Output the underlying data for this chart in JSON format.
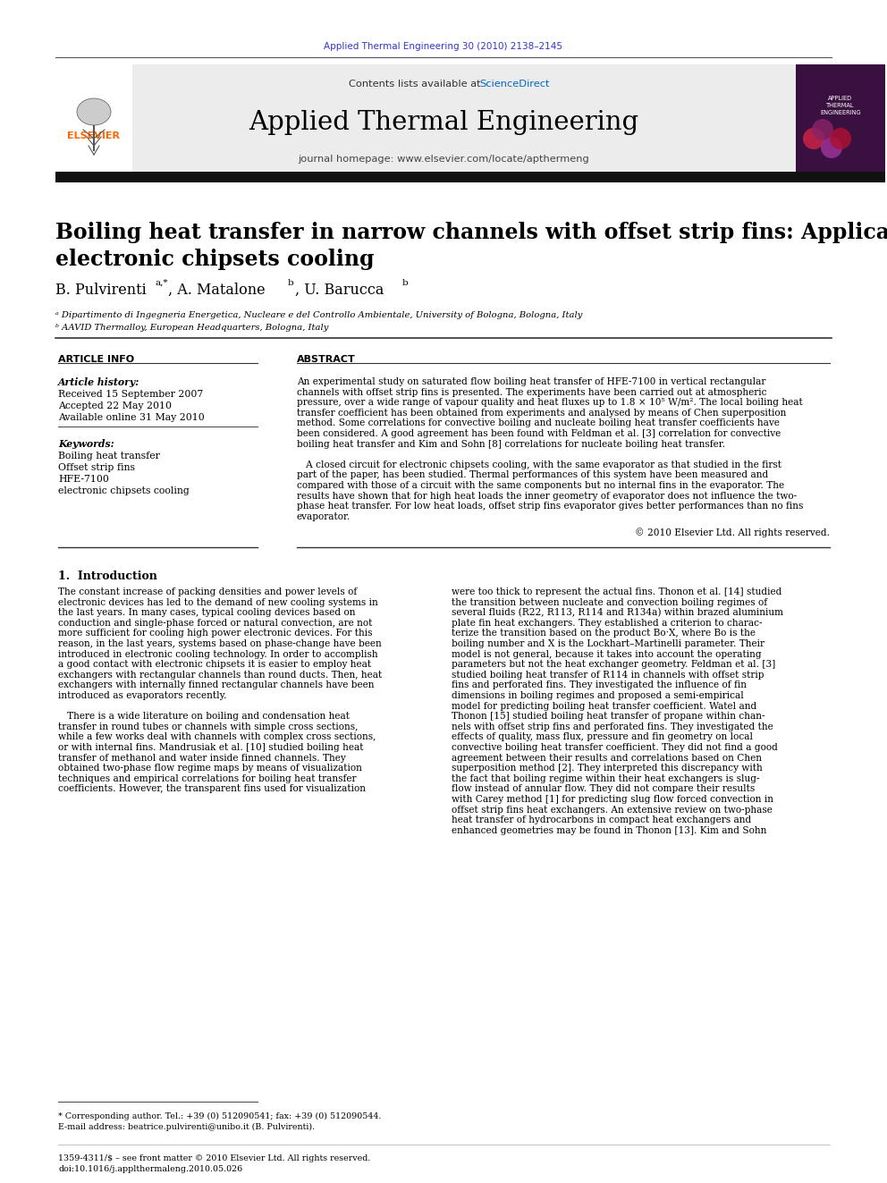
{
  "journal_ref": "Applied Thermal Engineering 30 (2010) 2138–2145",
  "journal_name": "Applied Thermal Engineering",
  "journal_homepage": "journal homepage: www.elsevier.com/locate/apthermeng",
  "contents_text": "Contents lists available at ",
  "sciencedirect_text": "ScienceDirect",
  "paper_title": "Boiling heat transfer in narrow channels with offset strip fins: Application to\nelectronic chipsets cooling",
  "affil1": "ᵃ Dipartimento di Ingegneria Energetica, Nucleare e del Controllo Ambientale, University of Bologna, Bologna, Italy",
  "affil2": "ᵇ AAVID Thermalloy, European Headquarters, Bologna, Italy",
  "section_article_info": "ARTICLE INFO",
  "section_abstract": "ABSTRACT",
  "article_history_label": "Article history:",
  "received": "Received 15 September 2007",
  "accepted": "Accepted 22 May 2010",
  "available": "Available online 31 May 2010",
  "keywords_label": "Keywords:",
  "keywords": [
    "Boiling heat transfer",
    "Offset strip fins",
    "HFE-7100",
    "electronic chipsets cooling"
  ],
  "copyright": "© 2010 Elsevier Ltd. All rights reserved.",
  "section1_title": "1.  Introduction",
  "footnote_star": "* Corresponding author. Tel.: +39 (0) 512090541; fax: +39 (0) 512090544.",
  "footnote_email": "E-mail address: beatrice.pulvirenti@unibo.it (B. Pulvirenti).",
  "footer_issn": "1359-4311/$ – see front matter © 2010 Elsevier Ltd. All rights reserved.",
  "footer_doi": "doi:10.1016/j.applthermaleng.2010.05.026",
  "bg_color": "#ffffff",
  "elsevier_orange": "#FF6600",
  "link_blue": "#3333cc",
  "sciencedirect_blue": "#0066CC",
  "text_color": "#000000",
  "abstract_lines": [
    "An experimental study on saturated flow boiling heat transfer of HFE-7100 in vertical rectangular",
    "channels with offset strip fins is presented. The experiments have been carried out at atmospheric",
    "pressure, over a wide range of vapour quality and heat fluxes up to 1.8 × 10⁵ W/m². The local boiling heat",
    "transfer coefficient has been obtained from experiments and analysed by means of Chen superposition",
    "method. Some correlations for convective boiling and nucleate boiling heat transfer coefficients have",
    "been considered. A good agreement has been found with Feldman et al. [3] correlation for convective",
    "boiling heat transfer and Kim and Sohn [8] correlations for nucleate boiling heat transfer.",
    "",
    "   A closed circuit for electronic chipsets cooling, with the same evaporator as that studied in the first",
    "part of the paper, has been studied. Thermal performances of this system have been measured and",
    "compared with those of a circuit with the same components but no internal fins in the evaporator. The",
    "results have shown that for high heat loads the inner geometry of evaporator does not influence the two-",
    "phase heat transfer. For low heat loads, offset strip fins evaporator gives better performances than no fins",
    "evaporator."
  ],
  "intro_left_lines": [
    "The constant increase of packing densities and power levels of",
    "electronic devices has led to the demand of new cooling systems in",
    "the last years. In many cases, typical cooling devices based on",
    "conduction and single-phase forced or natural convection, are not",
    "more sufficient for cooling high power electronic devices. For this",
    "reason, in the last years, systems based on phase-change have been",
    "introduced in electronic cooling technology. In order to accomplish",
    "a good contact with electronic chipsets it is easier to employ heat",
    "exchangers with rectangular channels than round ducts. Then, heat",
    "exchangers with internally finned rectangular channels have been",
    "introduced as evaporators recently.",
    "",
    "   There is a wide literature on boiling and condensation heat",
    "transfer in round tubes or channels with simple cross sections,",
    "while a few works deal with channels with complex cross sections,",
    "or with internal fins. Mandrusiak et al. [10] studied boiling heat",
    "transfer of methanol and water inside finned channels. They",
    "obtained two-phase flow regime maps by means of visualization",
    "techniques and empirical correlations for boiling heat transfer",
    "coefficients. However, the transparent fins used for visualization"
  ],
  "intro_right_lines": [
    "were too thick to represent the actual fins. Thonon et al. [14] studied",
    "the transition between nucleate and convection boiling regimes of",
    "several fluids (R22, R113, R114 and R134a) within brazed aluminium",
    "plate fin heat exchangers. They established a criterion to charac-",
    "terize the transition based on the product Bo·X, where Bo is the",
    "boiling number and X is the Lockhart–Martinelli parameter. Their",
    "model is not general, because it takes into account the operating",
    "parameters but not the heat exchanger geometry. Feldman et al. [3]",
    "studied boiling heat transfer of R114 in channels with offset strip",
    "fins and perforated fins. They investigated the influence of fin",
    "dimensions in boiling regimes and proposed a semi-empirical",
    "model for predicting boiling heat transfer coefficient. Watel and",
    "Thonon [15] studied boiling heat transfer of propane within chan-",
    "nels with offset strip fins and perforated fins. They investigated the",
    "effects of quality, mass flux, pressure and fin geometry on local",
    "convective boiling heat transfer coefficient. They did not find a good",
    "agreement between their results and correlations based on Chen",
    "superposition method [2]. They interpreted this discrepancy with",
    "the fact that boiling regime within their heat exchangers is slug-",
    "flow instead of annular flow. They did not compare their results",
    "with Carey method [1] for predicting slug flow forced convection in",
    "offset strip fins heat exchangers. An extensive review on two-phase",
    "heat transfer of hydrocarbons in compact heat exchangers and",
    "enhanced geometries may be found in Thonon [13]. Kim and Sohn"
  ]
}
